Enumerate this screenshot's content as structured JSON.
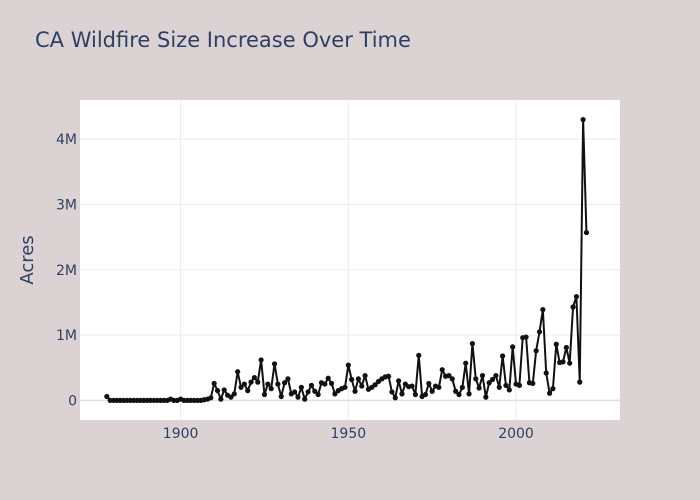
{
  "chart_data": {
    "type": "line",
    "title": "CA Wildfire Size Increase Over Time",
    "xlabel": "",
    "ylabel": "Acres",
    "xlim": [
      1870,
      2031
    ],
    "ylim": [
      -300000,
      4600000
    ],
    "x_ticks": [
      1900,
      1950,
      2000
    ],
    "x_tick_labels": [
      "1900",
      "1950",
      "2000"
    ],
    "y_ticks": [
      0,
      1000000,
      2000000,
      3000000,
      4000000
    ],
    "y_tick_labels": [
      "0",
      "1M",
      "2M",
      "3M",
      "4M"
    ],
    "grid": true,
    "legend": false,
    "colors": {
      "line": "#111111",
      "marker": "#111111",
      "plot_bg": "#ffffff",
      "paper_bg": "#dbd3d3",
      "grid": "#ebebeb",
      "text": "#2f3f63"
    },
    "series": [
      {
        "x": [
          1878,
          1879,
          1880,
          1881,
          1882,
          1883,
          1884,
          1885,
          1886,
          1887,
          1888,
          1889,
          1890,
          1891,
          1892,
          1893,
          1894,
          1895,
          1896,
          1897,
          1898,
          1899,
          1900,
          1901,
          1902,
          1903,
          1904,
          1905,
          1906,
          1907,
          1908,
          1909,
          1910,
          1911,
          1912,
          1913,
          1914,
          1915,
          1916,
          1917,
          1918,
          1919,
          1920,
          1921,
          1922,
          1923,
          1924,
          1925,
          1926,
          1927,
          1928,
          1929,
          1930,
          1931,
          1932,
          1933,
          1934,
          1935,
          1936,
          1937,
          1938,
          1939,
          1940,
          1941,
          1942,
          1943,
          1944,
          1945,
          1946,
          1947,
          1948,
          1949,
          1950,
          1951,
          1952,
          1953,
          1954,
          1955,
          1956,
          1957,
          1958,
          1959,
          1960,
          1961,
          1962,
          1963,
          1964,
          1965,
          1966,
          1967,
          1968,
          1969,
          1970,
          1971,
          1972,
          1973,
          1974,
          1975,
          1976,
          1977,
          1978,
          1979,
          1980,
          1981,
          1982,
          1983,
          1984,
          1985,
          1986,
          1987,
          1988,
          1989,
          1990,
          1991,
          1992,
          1993,
          1994,
          1995,
          1996,
          1997,
          1998,
          1999,
          2000,
          2001,
          2002,
          2003,
          2004,
          2005,
          2006,
          2007,
          2008,
          2009,
          2010,
          2011,
          2012,
          2013,
          2014,
          2015,
          2016,
          2017,
          2018,
          2019,
          2020,
          2021
        ],
        "y": [
          60000,
          0,
          0,
          0,
          0,
          0,
          0,
          0,
          0,
          0,
          0,
          0,
          0,
          0,
          0,
          0,
          0,
          0,
          0,
          20000,
          0,
          0,
          20000,
          0,
          0,
          0,
          0,
          0,
          0,
          10000,
          20000,
          40000,
          260000,
          150000,
          20000,
          160000,
          80000,
          50000,
          100000,
          440000,
          200000,
          250000,
          150000,
          280000,
          350000,
          280000,
          620000,
          90000,
          250000,
          180000,
          560000,
          250000,
          60000,
          270000,
          330000,
          100000,
          130000,
          50000,
          200000,
          20000,
          130000,
          230000,
          140000,
          90000,
          270000,
          250000,
          340000,
          260000,
          100000,
          150000,
          180000,
          200000,
          540000,
          320000,
          140000,
          330000,
          220000,
          380000,
          170000,
          200000,
          240000,
          290000,
          330000,
          360000,
          370000,
          130000,
          40000,
          300000,
          100000,
          250000,
          210000,
          220000,
          90000,
          690000,
          60000,
          90000,
          260000,
          140000,
          220000,
          200000,
          470000,
          370000,
          380000,
          330000,
          140000,
          90000,
          200000,
          570000,
          100000,
          870000,
          330000,
          190000,
          380000,
          50000,
          270000,
          320000,
          380000,
          200000,
          680000,
          230000,
          160000,
          820000,
          250000,
          230000,
          960000,
          970000,
          270000,
          260000,
          760000,
          1050000,
          1390000,
          420000,
          110000,
          180000,
          860000,
          580000,
          590000,
          810000,
          570000,
          1430000,
          1590000,
          280000,
          4300000,
          2570000
        ]
      }
    ]
  }
}
